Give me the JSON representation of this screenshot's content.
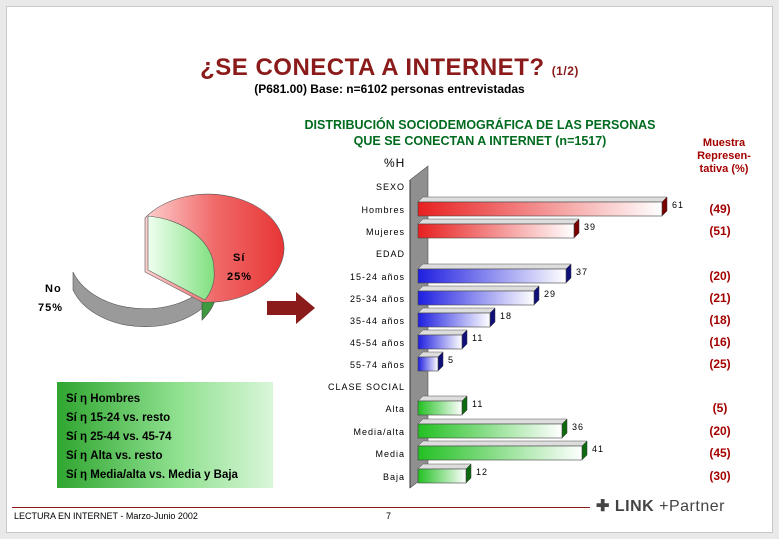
{
  "header": {
    "title": "¿SE CONECTA A INTERNET?",
    "title_part": "(1/2)",
    "subtitle": "(P681.00) Base: n=6102 personas entrevistadas"
  },
  "chart_title_line1": "DISTRIBUCIÓN SOCIODEMOGRÁFICA DE LAS PERSONAS",
  "chart_title_line2": "QUE SE CONECTAN A INTERNET (n=1517)",
  "muestra_header": [
    "Muestra",
    "Represen-",
    "tativa (%)"
  ],
  "pie_labels": {
    "si": "Sí",
    "si_value": "25%",
    "no": "No",
    "no_value": "75%"
  },
  "legend_lines": [
    "Sí  η  Hombres",
    "Sí  η  15-24 vs. resto",
    "Sí  η  25-44 vs. 45-74",
    "Sí  η  Alta vs. resto",
    "Sí  η  Media/alta vs. Media y Baja"
  ],
  "footer": {
    "text": "LECTURA EN INTERNET - Marzo-Junio 2002",
    "page": "7"
  },
  "logo": {
    "brand": "LINK",
    "partner": "+Partner"
  },
  "colors": {
    "title": "#8b1a1a",
    "chart_title": "#006b1f",
    "muestra": "#a30000",
    "red": "#e03030",
    "blue": "#2a2ae0",
    "green": "#2fc02f"
  },
  "chart_data": [
    {
      "type": "pie",
      "slices": [
        {
          "label": "Sí",
          "value": 25
        },
        {
          "label": "No",
          "value": 75
        }
      ]
    },
    {
      "type": "bar",
      "ylabel": "%H",
      "groups": [
        {
          "name": "SEXO",
          "color": "red",
          "items": [
            {
              "label": "Hombres",
              "value": 61,
              "muestra": "(49)"
            },
            {
              "label": "Mujeres",
              "value": 39,
              "muestra": "(51)"
            }
          ]
        },
        {
          "name": "EDAD",
          "color": "blue",
          "items": [
            {
              "label": "15-24 años",
              "value": 37,
              "muestra": "(20)"
            },
            {
              "label": "25-34 años",
              "value": 29,
              "muestra": "(21)"
            },
            {
              "label": "35-44 años",
              "value": 18,
              "muestra": "(18)"
            },
            {
              "label": "45-54 años",
              "value": 11,
              "muestra": "(16)"
            },
            {
              "label": "55-74 años",
              "value": 5,
              "muestra": "(25)"
            }
          ]
        },
        {
          "name": "CLASE SOCIAL",
          "color": "green",
          "items": [
            {
              "label": "Alta",
              "value": 11,
              "muestra": "(5)"
            },
            {
              "label": "Media/alta",
              "value": 36,
              "muestra": "(20)"
            },
            {
              "label": "Media",
              "value": 41,
              "muestra": "(45)"
            },
            {
              "label": "Baja",
              "value": 12,
              "muestra": "(30)"
            }
          ]
        }
      ]
    }
  ]
}
